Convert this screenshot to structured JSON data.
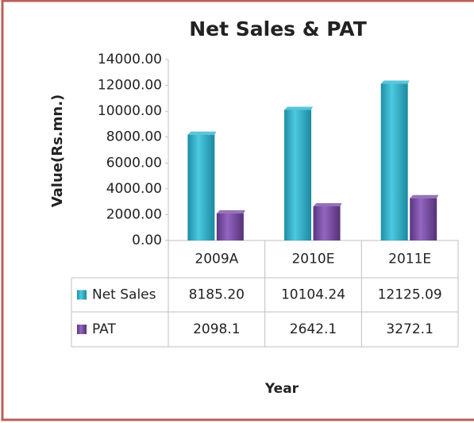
{
  "chart_data": {
    "type": "bar",
    "title": "Net Sales & PAT",
    "y_label": "Value(Rs.mn.)",
    "x_label": "Year",
    "categories": [
      "2009A",
      "2010E",
      "2011E"
    ],
    "series": [
      {
        "name": "Net Sales",
        "color": "#31b6cf",
        "values": [
          8185.2,
          10104.24,
          12125.09
        ],
        "value_labels": [
          "8185.20",
          "10104.24",
          "12125.09"
        ]
      },
      {
        "name": "PAT",
        "color": "#7b4fa6",
        "values": [
          2098.1,
          2642.1,
          3272.1
        ]
      }
    ],
    "ylim": [
      0,
      14000
    ],
    "yticks": [
      {
        "value": 0,
        "label": "0.00"
      },
      {
        "value": 2000,
        "label": "2000.00"
      },
      {
        "value": 4000,
        "label": "4000.00"
      },
      {
        "value": 6000,
        "label": "6000.00"
      },
      {
        "value": 8000,
        "label": "8000.00"
      },
      {
        "value": 10000,
        "label": "10000.00"
      },
      {
        "value": 12000,
        "label": "12000.00"
      },
      {
        "value": 14000,
        "label": "14000.00"
      }
    ],
    "data_table": true
  }
}
